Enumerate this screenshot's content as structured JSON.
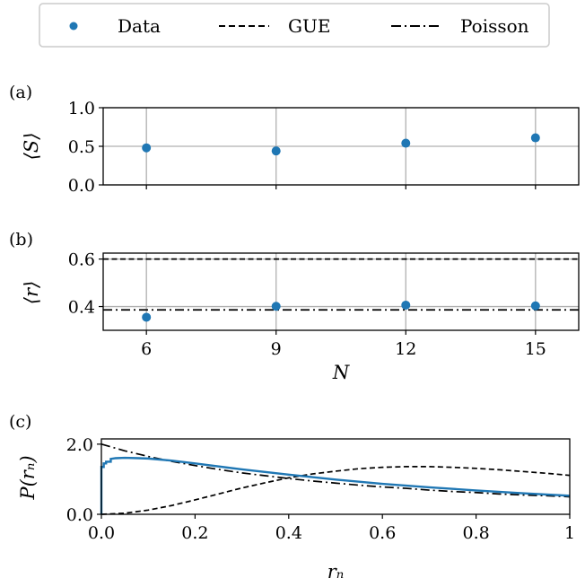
{
  "colors": {
    "data": "#1f77b4",
    "reference": "#000000",
    "grid": "#b0b0b0"
  },
  "legend": {
    "placement": "top-center",
    "entries": [
      {
        "label": "Data",
        "style": "marker"
      },
      {
        "label": "GUE",
        "style": "dashed"
      },
      {
        "label": "Poisson",
        "style": "dashdot"
      }
    ]
  },
  "chart_data": [
    {
      "panel": "(a)",
      "type": "scatter",
      "ylabel": "⟨S⟩",
      "xlabel": "",
      "xlim": [
        5,
        16
      ],
      "ylim": [
        0,
        1
      ],
      "xticks": [
        6,
        9,
        12,
        15
      ],
      "yticks": [
        0.0,
        0.5,
        1.0
      ],
      "ytick_labels": [
        "0.0",
        "0.5",
        "1.0"
      ],
      "show_xtick_labels": false,
      "grid": true,
      "series": [
        {
          "name": "Data",
          "x": [
            6,
            9,
            12,
            15
          ],
          "y": [
            0.48,
            0.44,
            0.54,
            0.61
          ]
        }
      ]
    },
    {
      "panel": "(b)",
      "type": "scatter",
      "ylabel": "⟨r⟩",
      "xlabel": "N",
      "xlim": [
        5,
        16
      ],
      "ylim": [
        0.3,
        0.625
      ],
      "xticks": [
        6,
        9,
        12,
        15
      ],
      "xtick_labels": [
        "6",
        "9",
        "12",
        "15"
      ],
      "yticks": [
        0.4,
        0.6
      ],
      "ytick_labels": [
        "0.4",
        "0.6"
      ],
      "grid": true,
      "series": [
        {
          "name": "Data",
          "x": [
            6,
            9,
            12,
            15
          ],
          "y": [
            0.355,
            0.401,
            0.406,
            0.403
          ]
        }
      ],
      "reference_lines": [
        {
          "name": "GUE",
          "y": 0.6,
          "style": "dashed"
        },
        {
          "name": "Poisson",
          "y": 0.386,
          "style": "dashdot"
        }
      ]
    },
    {
      "panel": "(c)",
      "type": "line",
      "ylabel": "P(rₙ)",
      "xlabel": "rₙ",
      "xlim": [
        0,
        1
      ],
      "ylim": [
        0,
        2.15
      ],
      "xticks": [
        0,
        0.2,
        0.4,
        0.6,
        0.8,
        1
      ],
      "xtick_labels": [
        "0.0",
        "0.2",
        "0.4",
        "0.6",
        "0.8",
        "1"
      ],
      "yticks": [
        0,
        2
      ],
      "ytick_labels": [
        "0.0",
        "2.0"
      ],
      "grid": false,
      "series": [
        {
          "name": "Data",
          "style": "step",
          "x": [
            0.0,
            0.005,
            0.01,
            0.02,
            0.03,
            0.05,
            0.08,
            0.1,
            0.15,
            0.2,
            0.3,
            0.4,
            0.5,
            0.6,
            0.7,
            0.8,
            0.9,
            1.0
          ],
          "y": [
            1.35,
            1.45,
            1.5,
            1.58,
            1.6,
            1.61,
            1.6,
            1.59,
            1.53,
            1.45,
            1.28,
            1.13,
            0.99,
            0.87,
            0.77,
            0.68,
            0.6,
            0.53
          ]
        },
        {
          "name": "GUE",
          "style": "dashed",
          "x": [
            0.0,
            0.05,
            0.1,
            0.15,
            0.2,
            0.25,
            0.3,
            0.35,
            0.4,
            0.45,
            0.5,
            0.55,
            0.6,
            0.65,
            0.7,
            0.75,
            0.8,
            0.85,
            0.9,
            0.95,
            1.0
          ],
          "y": [
            0.0,
            0.03,
            0.12,
            0.25,
            0.41,
            0.58,
            0.75,
            0.9,
            1.04,
            1.15,
            1.23,
            1.3,
            1.34,
            1.36,
            1.36,
            1.34,
            1.31,
            1.27,
            1.22,
            1.17,
            1.11
          ]
        },
        {
          "name": "Poisson",
          "style": "dashdot",
          "x": [
            0.0,
            0.05,
            0.1,
            0.15,
            0.2,
            0.25,
            0.3,
            0.35,
            0.4,
            0.45,
            0.5,
            0.55,
            0.6,
            0.65,
            0.7,
            0.75,
            0.8,
            0.85,
            0.9,
            0.95,
            1.0
          ],
          "y": [
            2.0,
            1.81,
            1.65,
            1.51,
            1.39,
            1.28,
            1.18,
            1.1,
            1.02,
            0.95,
            0.89,
            0.83,
            0.78,
            0.74,
            0.69,
            0.65,
            0.62,
            0.58,
            0.55,
            0.53,
            0.5
          ]
        }
      ]
    }
  ]
}
